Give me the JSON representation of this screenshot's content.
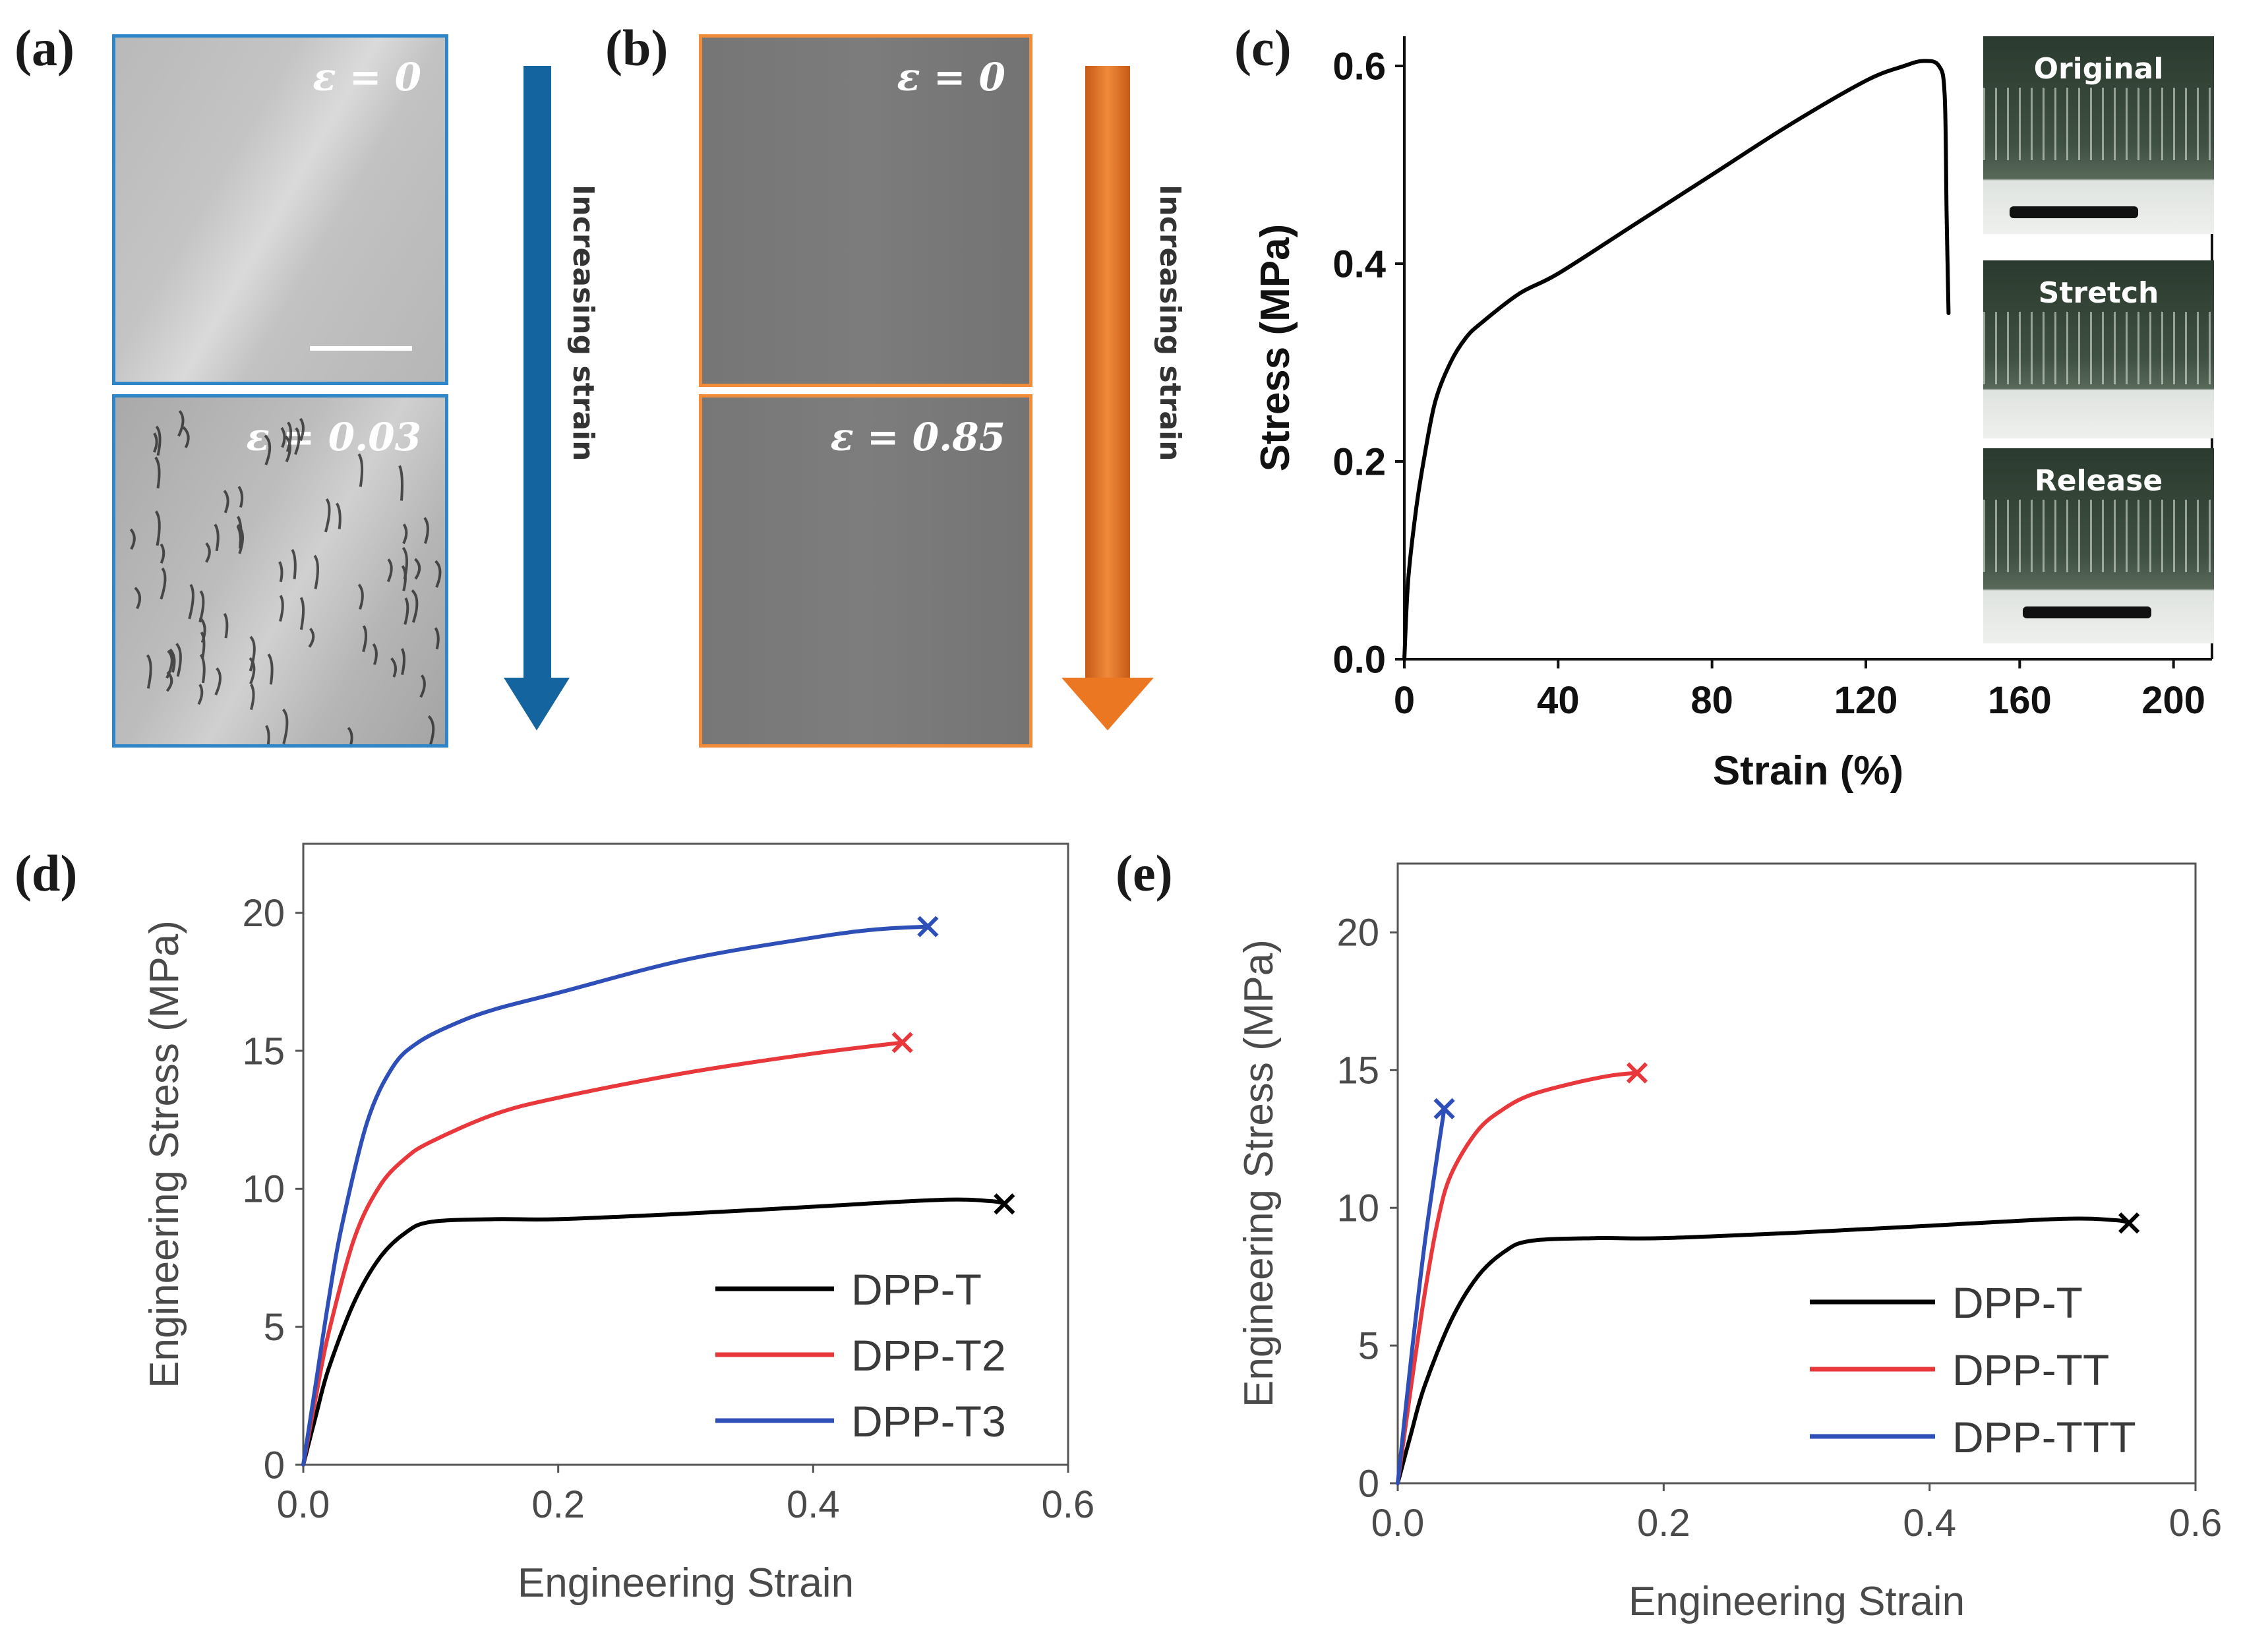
{
  "panels": {
    "a": {
      "letter": "(a)",
      "top_label": "ε = 0",
      "bottom_label": "ε = 0.03",
      "arrow_text": "Increasing strain",
      "accent": "#2e86c8",
      "arrow_color": "#1464a0"
    },
    "b": {
      "letter": "(b)",
      "top_label": "ε = 0",
      "bottom_label": "ε = 0.85",
      "arrow_text": "Increasing strain",
      "accent": "#f08c3a",
      "arrow_color": "#ec7722"
    },
    "c": {
      "letter": "(c)",
      "insets": [
        "Original",
        "Stretch",
        "Release"
      ]
    },
    "d": {
      "letter": "(d)"
    },
    "e": {
      "letter": "(e)"
    }
  },
  "chart_data": [
    {
      "id": "c",
      "type": "line",
      "xlabel": "Strain (%)",
      "ylabel": "Stress (MPa)",
      "xlim": [
        0,
        210
      ],
      "ylim": [
        0,
        0.63
      ],
      "xticks": [
        0,
        40,
        80,
        120,
        160,
        200
      ],
      "yticks": [
        0.0,
        0.2,
        0.4,
        0.6
      ],
      "xtick_labels": [
        "0",
        "40",
        "80",
        "120",
        "160",
        "200"
      ],
      "ytick_labels": [
        "0.0",
        "0.2",
        "0.4",
        "0.6"
      ],
      "series": [
        {
          "color": "#000000",
          "x": [
            0,
            1,
            3,
            5,
            8,
            12,
            16,
            20,
            30,
            40,
            60,
            80,
            100,
            120,
            130,
            135,
            139,
            140.5,
            141,
            141.5
          ],
          "y": [
            0,
            0.08,
            0.15,
            0.2,
            0.26,
            0.3,
            0.325,
            0.34,
            0.37,
            0.39,
            0.44,
            0.49,
            0.54,
            0.585,
            0.6,
            0.605,
            0.6,
            0.57,
            0.45,
            0.35
          ]
        }
      ]
    },
    {
      "id": "d",
      "type": "line",
      "xlabel": "Engineering Strain",
      "ylabel": "Engineering Stress (MPa)",
      "xlim": [
        0,
        0.6
      ],
      "ylim": [
        0,
        22.5
      ],
      "xticks": [
        0,
        0.2,
        0.4,
        0.6
      ],
      "yticks": [
        0,
        5,
        10,
        15,
        20
      ],
      "xtick_labels": [
        "0.0",
        "0.2",
        "0.4",
        "0.6"
      ],
      "ytick_labels": [
        "0",
        "5",
        "10",
        "15",
        "20"
      ],
      "legend": "bottom-right",
      "series": [
        {
          "name": "DPP-T",
          "color": "#000000",
          "x": [
            0,
            0.01,
            0.02,
            0.04,
            0.06,
            0.08,
            0.1,
            0.15,
            0.2,
            0.3,
            0.4,
            0.5,
            0.54,
            0.55
          ],
          "y": [
            0,
            1.8,
            3.5,
            5.9,
            7.5,
            8.4,
            8.8,
            8.9,
            8.9,
            9.1,
            9.35,
            9.6,
            9.55,
            9.45
          ]
        },
        {
          "name": "DPP-T2",
          "color": "#e8383c",
          "x": [
            0,
            0.01,
            0.02,
            0.04,
            0.06,
            0.08,
            0.1,
            0.15,
            0.2,
            0.3,
            0.4,
            0.47
          ],
          "y": [
            0,
            2.5,
            4.8,
            8.2,
            10.1,
            11.1,
            11.7,
            12.7,
            13.3,
            14.2,
            14.9,
            15.3
          ]
        },
        {
          "name": "DPP-T3",
          "color": "#2f4fb8",
          "x": [
            0,
            0.01,
            0.02,
            0.03,
            0.05,
            0.07,
            0.09,
            0.12,
            0.15,
            0.2,
            0.3,
            0.4,
            0.45,
            0.49
          ],
          "y": [
            0,
            3.0,
            6.0,
            8.6,
            12.4,
            14.4,
            15.3,
            16.0,
            16.5,
            17.1,
            18.3,
            19.1,
            19.4,
            19.5
          ]
        }
      ],
      "end_markers": true
    },
    {
      "id": "e",
      "type": "line",
      "xlabel": "Engineering Strain",
      "ylabel": "Engineering Stress (MPa)",
      "xlim": [
        0,
        0.6
      ],
      "ylim": [
        0,
        22.5
      ],
      "xticks": [
        0,
        0.2,
        0.4,
        0.6
      ],
      "yticks": [
        0,
        5,
        10,
        15,
        20
      ],
      "xtick_labels": [
        "0.0",
        "0.2",
        "0.4",
        "0.6"
      ],
      "ytick_labels": [
        "0",
        "5",
        "10",
        "15",
        "20"
      ],
      "legend": "bottom-right",
      "series": [
        {
          "name": "DPP-T",
          "color": "#000000",
          "x": [
            0,
            0.01,
            0.02,
            0.04,
            0.06,
            0.08,
            0.1,
            0.15,
            0.2,
            0.3,
            0.4,
            0.5,
            0.54,
            0.55
          ],
          "y": [
            0,
            1.8,
            3.5,
            5.9,
            7.5,
            8.4,
            8.8,
            8.9,
            8.9,
            9.1,
            9.35,
            9.6,
            9.55,
            9.45
          ]
        },
        {
          "name": "DPP-TT",
          "color": "#e8383c",
          "x": [
            0,
            0.01,
            0.02,
            0.03,
            0.04,
            0.06,
            0.08,
            0.1,
            0.13,
            0.16,
            0.18
          ],
          "y": [
            0,
            3.5,
            6.8,
            9.5,
            11.2,
            12.8,
            13.6,
            14.1,
            14.5,
            14.8,
            14.9
          ]
        },
        {
          "name": "DPP-TTT",
          "color": "#2f4fb8",
          "x": [
            0,
            0.01,
            0.02,
            0.03,
            0.035
          ],
          "y": [
            0,
            4.5,
            8.6,
            12.0,
            13.6
          ]
        }
      ],
      "end_markers": true
    }
  ]
}
